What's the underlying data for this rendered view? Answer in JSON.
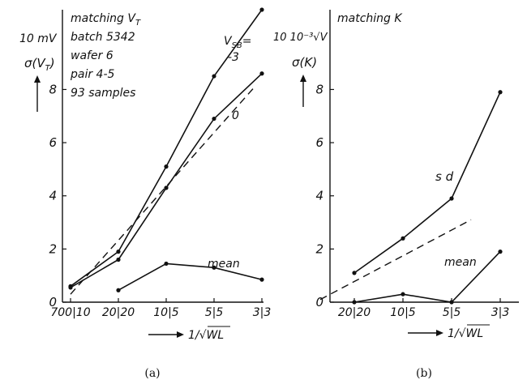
{
  "chart_data": [
    {
      "type": "line",
      "panel_label": "(a)",
      "ylabel": "σ(V",
      "ylabel_sub": "T",
      "ylabel_close": ")",
      "y_unit_label": "10 mV",
      "xlabel": "1/√WL",
      "xlabel_prefix": "1/",
      "xlabel_rad": "WL",
      "ylim": [
        0,
        11
      ],
      "y_ticks": [
        0,
        2,
        4,
        6,
        8
      ],
      "x_positions": [
        0,
        1,
        2,
        3,
        4
      ],
      "x_tick_labels": [
        "700|10",
        "20|20",
        "10|5",
        "5|5",
        "3|3"
      ],
      "annotation_lines": [
        "matching V",
        "batch 5342",
        "wafer 6",
        "pair 4-5",
        "93 samples"
      ],
      "annotation_sub": "T",
      "vsb_label": "V",
      "vsb_sub": "SB",
      "vsb_eq": "=",
      "series": [
        {
          "name": "-3",
          "line": "solid",
          "x": [
            0,
            1,
            2,
            3,
            4
          ],
          "y": [
            0.6,
            1.9,
            5.1,
            8.5,
            11.0
          ]
        },
        {
          "name": "0",
          "line": "solid",
          "x": [
            0,
            1,
            2,
            3,
            4
          ],
          "y": [
            0.55,
            1.6,
            4.3,
            6.9,
            8.6
          ]
        },
        {
          "name": "",
          "line": "dashed",
          "x": [
            0,
            3.85
          ],
          "y": [
            0.3,
            8.1
          ]
        },
        {
          "name": "mean",
          "line": "solid",
          "x": [
            1,
            2,
            3,
            4
          ],
          "y": [
            0.45,
            1.45,
            1.3,
            0.85
          ]
        }
      ]
    },
    {
      "type": "line",
      "panel_label": "(b)",
      "ylabel": "σ(K)",
      "y_unit_label": "10 10⁻³√V",
      "xlabel": "1/√WL",
      "xlabel_prefix": "1/",
      "xlabel_rad": "WL",
      "ylim": [
        0,
        11
      ],
      "y_ticks": [
        0,
        2,
        4,
        6,
        8
      ],
      "y_tick_labels": [
        "0",
        "2",
        "4",
        "6",
        "8"
      ],
      "x_positions": [
        1,
        2,
        3,
        4
      ],
      "x_tick_labels": [
        "20|20",
        "10|5",
        "5|5",
        "3|3"
      ],
      "annotation_lines": [
        "matching K"
      ],
      "series": [
        {
          "name": "s d",
          "line": "solid",
          "x": [
            1,
            2,
            3,
            4
          ],
          "y": [
            1.1,
            2.4,
            3.9,
            7.9
          ]
        },
        {
          "name": "",
          "line": "dashed",
          "x": [
            0.3,
            3.4
          ],
          "y": [
            0.1,
            3.1
          ]
        },
        {
          "name": "mean",
          "line": "solid",
          "x": [
            1,
            2,
            3,
            4
          ],
          "y": [
            0.0,
            0.3,
            0.0,
            1.9
          ]
        }
      ]
    }
  ]
}
